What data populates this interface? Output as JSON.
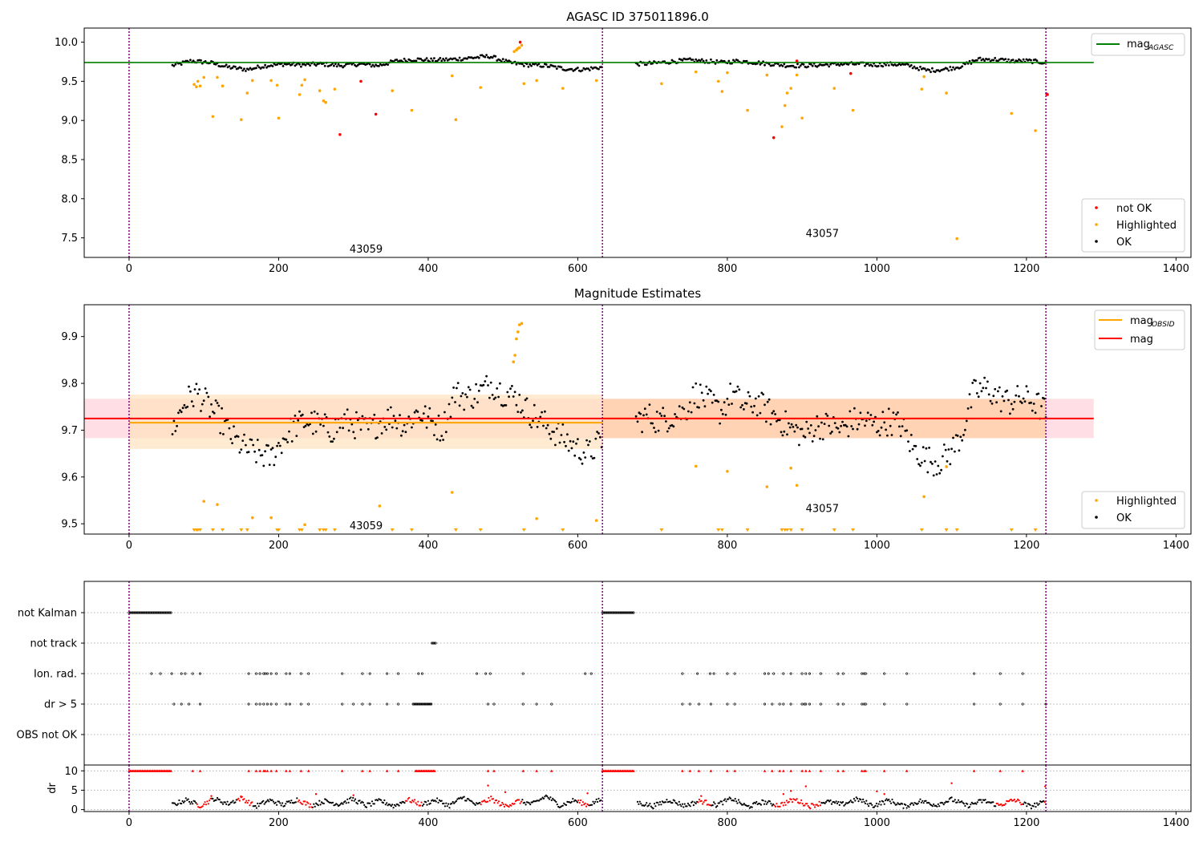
{
  "figure": {
    "title_top": "AGASC ID 375011896.0",
    "title_middle": "Magnitude Estimates"
  },
  "chart_data": [
    {
      "type": "scatter",
      "title": "AGASC ID 375011896.0",
      "xlim": [
        -60,
        1420
      ],
      "ylim": [
        7.25,
        10.18
      ],
      "xticks": [
        0,
        200,
        400,
        600,
        800,
        1000,
        1200,
        1400
      ],
      "yticks": [
        7.5,
        8.0,
        8.5,
        9.0,
        9.5,
        10.0
      ],
      "ytick_labels": [
        "7.5",
        "8.0",
        "8.5",
        "9.0",
        "9.5",
        "10.0"
      ],
      "grid": false,
      "obsid_boundaries": [
        0,
        633,
        1226
      ],
      "obsid_labels": [
        {
          "text": "43059",
          "x": 317,
          "y": 7.35
        },
        {
          "text": "43057",
          "x": 927,
          "y": 7.55
        }
      ],
      "hlines": [
        {
          "name": "mag_AGASC",
          "y": 9.74,
          "x0": -60,
          "x1": 1290,
          "color": "#008000"
        }
      ],
      "ok_segments": [
        {
          "x0": 58,
          "x1": 632,
          "levels": [
            9.7,
            9.76,
            9.74,
            9.68,
            9.65,
            9.7,
            9.72,
            9.71,
            9.72,
            9.7,
            9.72,
            9.7,
            9.76,
            9.78,
            9.77,
            9.78,
            9.8,
            9.82,
            9.74,
            9.71,
            9.7,
            9.66,
            9.65,
            9.68
          ]
        },
        {
          "x0": 678,
          "x1": 1226,
          "levels": [
            9.72,
            9.73,
            9.75,
            9.77,
            9.76,
            9.74,
            9.76,
            9.74,
            9.72,
            9.7,
            9.7,
            9.71,
            9.72,
            9.72,
            9.71,
            9.72,
            9.7,
            9.64,
            9.65,
            9.69,
            9.78,
            9.78,
            9.76,
            9.76,
            9.74
          ]
        }
      ],
      "series": [
        {
          "name": "not OK",
          "color": "#ff0000",
          "points": [
            [
              310,
              9.5
            ],
            [
              330,
              9.08
            ],
            [
              282,
              8.82
            ],
            [
              523,
              10.0
            ],
            [
              862,
              8.78
            ],
            [
              965,
              9.6
            ],
            [
              1228,
              9.33
            ],
            [
              1227,
              9.34
            ],
            [
              893,
              9.76
            ]
          ]
        },
        {
          "name": "Highlighted",
          "color": "#ffa500",
          "points": [
            [
              87,
              9.46
            ],
            [
              90,
              9.43
            ],
            [
              92,
              9.5
            ],
            [
              95,
              9.44
            ],
            [
              100,
              9.55
            ],
            [
              112,
              9.05
            ],
            [
              118,
              9.55
            ],
            [
              125,
              9.44
            ],
            [
              150,
              9.01
            ],
            [
              158,
              9.35
            ],
            [
              165,
              9.51
            ],
            [
              190,
              9.51
            ],
            [
              198,
              9.45
            ],
            [
              200,
              9.03
            ],
            [
              228,
              9.33
            ],
            [
              231,
              9.45
            ],
            [
              235,
              9.52
            ],
            [
              255,
              9.38
            ],
            [
              260,
              9.25
            ],
            [
              263,
              9.23
            ],
            [
              275,
              9.4
            ],
            [
              352,
              9.38
            ],
            [
              378,
              9.13
            ],
            [
              432,
              9.57
            ],
            [
              437,
              9.01
            ],
            [
              470,
              9.42
            ],
            [
              515,
              9.88
            ],
            [
              518,
              9.9
            ],
            [
              520,
              9.92
            ],
            [
              522,
              9.93
            ],
            [
              525,
              9.96
            ],
            [
              528,
              9.47
            ],
            [
              545,
              9.51
            ],
            [
              580,
              9.41
            ],
            [
              625,
              9.51
            ],
            [
              712,
              9.47
            ],
            [
              758,
              9.62
            ],
            [
              788,
              9.5
            ],
            [
              793,
              9.37
            ],
            [
              800,
              9.61
            ],
            [
              827,
              9.13
            ],
            [
              853,
              9.58
            ],
            [
              873,
              8.92
            ],
            [
              877,
              9.19
            ],
            [
              880,
              9.35
            ],
            [
              885,
              9.41
            ],
            [
              893,
              9.58
            ],
            [
              900,
              9.03
            ],
            [
              943,
              9.41
            ],
            [
              968,
              9.13
            ],
            [
              1060,
              9.4
            ],
            [
              1063,
              9.56
            ],
            [
              1093,
              9.35
            ],
            [
              1107,
              7.49
            ],
            [
              1180,
              9.09
            ],
            [
              1212,
              8.87
            ]
          ]
        }
      ]
    },
    {
      "type": "scatter",
      "title": "Magnitude Estimates",
      "xlim": [
        -60,
        1420
      ],
      "ylim": [
        9.478,
        9.968
      ],
      "xticks": [
        0,
        200,
        400,
        600,
        800,
        1000,
        1200,
        1400
      ],
      "yticks": [
        9.5,
        9.6,
        9.7,
        9.8,
        9.9
      ],
      "ytick_labels": [
        "9.5",
        "9.6",
        "9.7",
        "9.8",
        "9.9"
      ],
      "grid": false,
      "obsid_boundaries": [
        0,
        633,
        1226
      ],
      "obsid_labels": [
        {
          "text": "43059",
          "x": 317,
          "y": 9.495
        },
        {
          "text": "43057",
          "x": 927,
          "y": 9.532
        }
      ],
      "bands": [
        {
          "x0": -60,
          "x1": 1290,
          "y0": 9.683,
          "y1": 9.767,
          "color": "#ffc0cb",
          "opacity": 0.5
        },
        {
          "x0": 0,
          "x1": 633,
          "y0": 9.66,
          "y1": 9.776,
          "color": "#ffe0b8",
          "opacity": 0.65
        },
        {
          "x0": 633,
          "x1": 1226,
          "y0": 9.683,
          "y1": 9.767,
          "color": "#ffd0a8",
          "opacity": 0.8
        }
      ],
      "hlines": [
        {
          "name": "mag_OBSID",
          "y": 9.716,
          "x0": 0,
          "x1": 633,
          "color": "#ffa500"
        },
        {
          "name": "mag_OBSID",
          "y": 9.725,
          "x0": 633,
          "x1": 1226,
          "color": "#ffa500"
        },
        {
          "name": "mag",
          "y": 9.725,
          "x0": -60,
          "x1": 1290,
          "color": "#ff0000"
        }
      ],
      "ok_segments": [
        {
          "x0": 58,
          "x1": 632,
          "levels": [
            9.7,
            9.76,
            9.78,
            9.75,
            9.72,
            9.68,
            9.66,
            9.65,
            9.64,
            9.68,
            9.71,
            9.72,
            9.71,
            9.7,
            9.72,
            9.71,
            9.7,
            9.72,
            9.73,
            9.71,
            9.74,
            9.72,
            9.7,
            9.78,
            9.77,
            9.78,
            9.8,
            9.78,
            9.77,
            9.74,
            9.72,
            9.7,
            9.68,
            9.66,
            9.65,
            9.68
          ]
        },
        {
          "x0": 678,
          "x1": 1226,
          "levels": [
            9.72,
            9.73,
            9.72,
            9.73,
            9.74,
            9.78,
            9.76,
            9.74,
            9.78,
            9.75,
            9.76,
            9.74,
            9.72,
            9.7,
            9.69,
            9.71,
            9.71,
            9.7,
            9.72,
            9.72,
            9.71,
            9.72,
            9.71,
            9.66,
            9.64,
            9.63,
            9.65,
            9.69,
            9.78,
            9.79,
            9.77,
            9.76,
            9.77,
            9.76,
            9.74
          ]
        }
      ],
      "series": [
        {
          "name": "Highlighted",
          "color": "#ffa500",
          "points": [
            [
              100,
              9.548
            ],
            [
              118,
              9.541
            ],
            [
              165,
              9.513
            ],
            [
              190,
              9.513
            ],
            [
              235,
              9.498
            ],
            [
              335,
              9.538
            ],
            [
              432,
              9.567
            ],
            [
              514,
              9.846
            ],
            [
              516,
              9.86
            ],
            [
              518,
              9.895
            ],
            [
              520,
              9.91
            ],
            [
              522,
              9.925
            ],
            [
              525,
              9.928
            ],
            [
              545,
              9.511
            ],
            [
              625,
              9.507
            ],
            [
              758,
              9.623
            ],
            [
              800,
              9.612
            ],
            [
              853,
              9.579
            ],
            [
              885,
              9.619
            ],
            [
              893,
              9.582
            ],
            [
              1063,
              9.558
            ],
            [
              1093,
              9.622
            ]
          ]
        }
      ],
      "below_markers_x": [
        87,
        90,
        92,
        95,
        112,
        125,
        150,
        158,
        198,
        200,
        228,
        231,
        255,
        260,
        263,
        275,
        352,
        378,
        437,
        470,
        528,
        580,
        712,
        788,
        793,
        827,
        873,
        877,
        880,
        885,
        900,
        943,
        968,
        1060,
        1093,
        1107,
        1180,
        1212
      ]
    },
    {
      "type": "scatter",
      "title": "",
      "xlim": [
        -60,
        1420
      ],
      "categories": [
        "not Kalman",
        "not track",
        "Ion. rad.",
        "dr > 5",
        "OBS not OK"
      ],
      "grid": true,
      "obsid_boundaries": [
        0,
        633,
        1226
      ],
      "flag_runs": [
        {
          "row": "not Kalman",
          "x0": 0,
          "x1": 57
        },
        {
          "row": "not Kalman",
          "x0": 633,
          "x1": 676
        },
        {
          "row": "not track",
          "x0": 405,
          "x1": 410
        }
      ],
      "flag_points": {
        "Ion. rad.": [
          30,
          42,
          57,
          70,
          75,
          85,
          95,
          160,
          170,
          175,
          180,
          182,
          185,
          190,
          197,
          210,
          215,
          230,
          240,
          285,
          312,
          322,
          345,
          360,
          387,
          392,
          465,
          477,
          483,
          527,
          610,
          618,
          740,
          760,
          777,
          782,
          800,
          810,
          850,
          855,
          862,
          875,
          885,
          900,
          905,
          910,
          925,
          948,
          955,
          980,
          983,
          985,
          1010,
          1040,
          1130,
          1165,
          1195
        ],
        "dr > 5": [
          60,
          70,
          80,
          95,
          160,
          170,
          175,
          180,
          185,
          190,
          197,
          210,
          215,
          230,
          240,
          285,
          300,
          312,
          322,
          345,
          360,
          380,
          385,
          390,
          395,
          400,
          404,
          480,
          488,
          527,
          545,
          565,
          740,
          750,
          762,
          778,
          800,
          810,
          850,
          860,
          870,
          875,
          885,
          900,
          903,
          905,
          910,
          925,
          948,
          955,
          980,
          983,
          985,
          1010,
          1040,
          1130,
          1165,
          1195,
          1226
        ]
      }
    },
    {
      "type": "scatter",
      "title": "",
      "xlim": [
        -60,
        1420
      ],
      "ylim": [
        -0.5,
        11.5
      ],
      "yticks": [
        0,
        5,
        10
      ],
      "ytick_labels": [
        "0",
        "5",
        "10"
      ],
      "ylabel": "dr",
      "xticks": [
        0,
        200,
        400,
        600,
        800,
        1000,
        1200,
        1400
      ],
      "obsid_boundaries": [
        0,
        633,
        1226
      ],
      "hline": 5,
      "capped_value": 10,
      "capped_runs": [
        [
          0,
          57
        ],
        [
          383,
          410
        ],
        [
          633,
          676
        ]
      ],
      "capped_points": [
        85,
        95,
        160,
        170,
        175,
        180,
        182,
        185,
        190,
        197,
        210,
        215,
        230,
        240,
        285,
        312,
        322,
        345,
        360,
        480,
        488,
        527,
        545,
        565,
        740,
        750,
        762,
        778,
        800,
        810,
        850,
        860,
        870,
        875,
        885,
        900,
        905,
        910,
        925,
        948,
        955,
        980,
        983,
        985,
        1010,
        1040,
        1130,
        1165,
        1195
      ],
      "trace_segments": [
        {
          "x0": 58,
          "x1": 632,
          "levels": [
            1.2,
            2.5,
            1.0,
            2.8,
            1.5,
            3.0,
            0.8,
            2.4,
            1.2,
            2.6,
            1.0,
            2.2,
            1.4,
            2.7,
            1.0,
            2.3,
            0.9,
            2.6,
            1.3,
            2.5,
            1.0,
            3.2,
            1.1,
            2.8,
            0.9,
            2.2,
            1.4,
            3.5,
            1.0,
            2.4,
            1.2,
            2.6
          ]
        },
        {
          "x0": 680,
          "x1": 1226,
          "levels": [
            1.8,
            0.9,
            2.5,
            1.0,
            2.2,
            1.2,
            2.8,
            0.7,
            2.0,
            1.1,
            2.6,
            0.9,
            2.1,
            1.3,
            2.7,
            1.0,
            2.4,
            0.8,
            2.2,
            1.2,
            2.6,
            1.0,
            2.3,
            1.1,
            2.5,
            0.8,
            2.0
          ]
        }
      ],
      "red_trace_ranges": [
        [
          90,
          110
        ],
        [
          145,
          165
        ],
        [
          225,
          245
        ],
        [
          370,
          392
        ],
        [
          470,
          525
        ],
        [
          600,
          615
        ],
        [
          760,
          778
        ],
        [
          862,
          925
        ],
        [
          1160,
          1195
        ],
        [
          1224,
          1230
        ]
      ],
      "red_scatter_points": [
        [
          110,
          3.5
        ],
        [
          150,
          3.2
        ],
        [
          250,
          4.0
        ],
        [
          300,
          3.7
        ],
        [
          480,
          6.2
        ],
        [
          503,
          4.5
        ],
        [
          613,
          4.2
        ],
        [
          765,
          3.5
        ],
        [
          875,
          4.0
        ],
        [
          885,
          4.8
        ],
        [
          905,
          6.0
        ],
        [
          1000,
          4.7
        ],
        [
          1010,
          4.0
        ],
        [
          1100,
          6.8
        ],
        [
          1225,
          6.0
        ]
      ]
    }
  ],
  "legends": {
    "top_line": {
      "label": "mag",
      "sub": "AGASC",
      "color": "#008000"
    },
    "top_points": [
      {
        "label": "not OK",
        "color": "#ff0000"
      },
      {
        "label": "Highlighted",
        "color": "#ffa500"
      },
      {
        "label": "OK",
        "color": "#000000"
      }
    ],
    "mid_lines": [
      {
        "label": "mag",
        "sub": "OBSID",
        "color": "#ffa500"
      },
      {
        "label": "mag",
        "sub": "",
        "color": "#ff0000"
      }
    ],
    "mid_points": [
      {
        "label": "Highlighted",
        "color": "#ffa500"
      },
      {
        "label": "OK",
        "color": "#000000"
      }
    ]
  }
}
